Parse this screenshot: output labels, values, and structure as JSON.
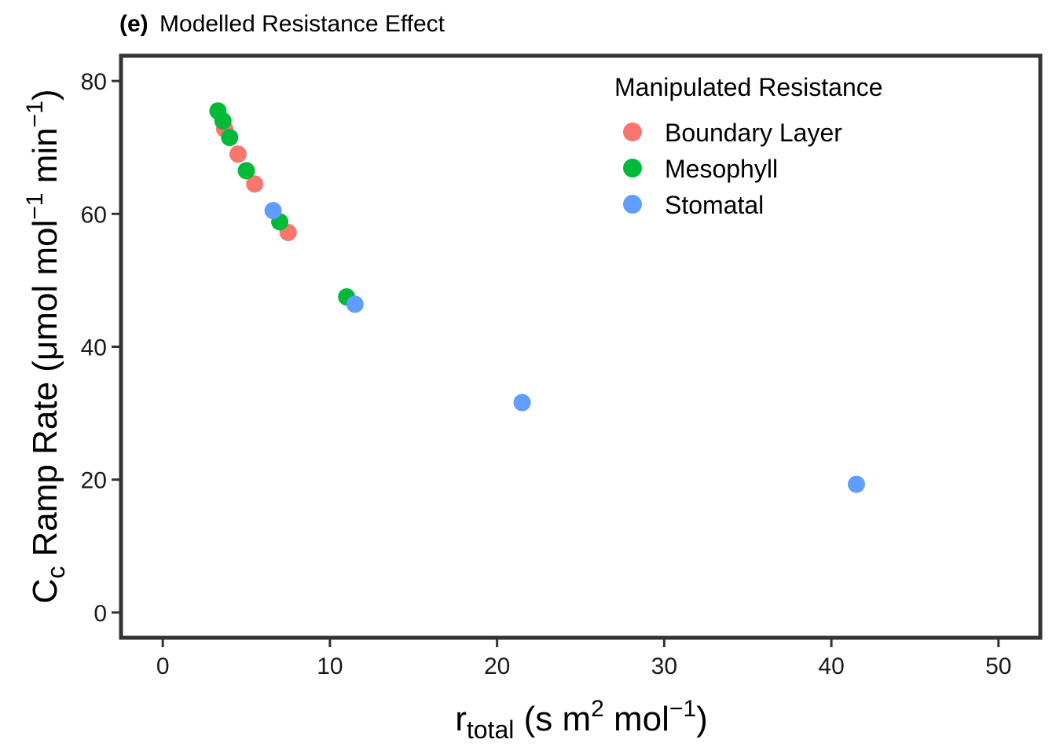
{
  "chart_data": {
    "type": "scatter",
    "title_prefix": "(e)",
    "title": "Modelled Resistance Effect",
    "xlabel": {
      "main": "r",
      "subscript": "total",
      "rest": " (s m",
      "sup1": "2",
      "mid": " mol",
      "sup2": "−1",
      "end": ")"
    },
    "ylabel": {
      "main": "C",
      "subscript": "c",
      "rest": " Ramp Rate (μmol mol",
      "sup1": "−1",
      "mid": " min",
      "sup2": "−1",
      "end": ")"
    },
    "xlim": [
      -2.5,
      52.5
    ],
    "ylim": [
      -3.8,
      83.8
    ],
    "x_ticks": [
      0,
      10,
      20,
      30,
      40,
      50
    ],
    "y_ticks": [
      0,
      20,
      40,
      60,
      80
    ],
    "x_tick_labels": [
      "0",
      "10",
      "20",
      "30",
      "40",
      "50"
    ],
    "y_tick_labels": [
      "0",
      "20",
      "40",
      "60",
      "80"
    ],
    "grid": false,
    "legend": {
      "title": "Manipulated Resistance",
      "position": "top-right"
    },
    "series": [
      {
        "name": "Boundary Layer",
        "color": "#F8766D",
        "points": [
          [
            3.7,
            72.8
          ],
          [
            4.5,
            69.0
          ],
          [
            5.5,
            64.5
          ],
          [
            7.5,
            57.2
          ]
        ]
      },
      {
        "name": "Mesophyll",
        "color": "#00BA38",
        "points": [
          [
            3.3,
            75.5
          ],
          [
            3.6,
            74.0
          ],
          [
            4.0,
            71.5
          ],
          [
            5.0,
            66.5
          ],
          [
            7.0,
            58.8
          ],
          [
            11.0,
            47.5
          ]
        ]
      },
      {
        "name": "Stomatal",
        "color": "#619CFF",
        "points": [
          [
            6.6,
            60.5
          ],
          [
            11.5,
            46.4
          ],
          [
            21.5,
            31.6
          ],
          [
            41.5,
            19.3
          ]
        ]
      }
    ]
  }
}
